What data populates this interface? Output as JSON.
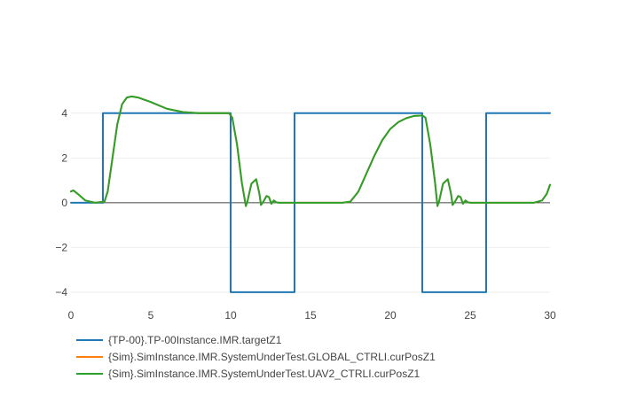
{
  "chart_data": {
    "type": "line",
    "title": "",
    "xlabel": "",
    "ylabel": "",
    "xlim": [
      0,
      30
    ],
    "ylim": [
      -4.4,
      5.1
    ],
    "x_ticks": [
      0,
      5,
      10,
      15,
      20,
      25,
      30
    ],
    "y_ticks": [
      -4,
      -2,
      0,
      2,
      4
    ],
    "grid": true,
    "zero_line": true,
    "legend_position": "bottom-left",
    "series": [
      {
        "name": "{TP-00}.TP-00Instance.IMR.targetZ1",
        "color": "#1f77b4",
        "shape": "step",
        "x": [
          0,
          2,
          2,
          10,
          10,
          14,
          14,
          22,
          22,
          26,
          26,
          30
        ],
        "y": [
          0,
          0,
          4,
          4,
          -4,
          -4,
          4,
          4,
          -4,
          -4,
          4,
          4
        ]
      },
      {
        "name": "{Sim}.SimInstance.IMR.SystemUnderTest.GLOBAL_CTRLI.curPosZ1",
        "color": "#ff7f0e",
        "shape": "linear",
        "x": [
          0,
          0.15,
          0.5,
          0.9,
          1.5,
          2.1,
          2.3,
          2.6,
          2.9,
          3.2,
          3.5,
          3.8,
          4.2,
          5,
          6,
          7,
          8,
          9,
          9.9,
          10.1,
          10.4,
          10.7,
          10.95,
          11.05,
          11.3,
          11.6,
          11.8,
          11.9,
          12.05,
          12.25,
          12.4,
          12.55,
          12.7,
          12.85,
          13.0,
          14,
          15,
          16,
          17,
          17.5,
          18,
          18.5,
          19,
          19.5,
          20,
          20.5,
          21,
          21.5,
          22,
          22.2,
          22.5,
          22.8,
          22.95,
          23.05,
          23.3,
          23.6,
          23.8,
          23.9,
          24.05,
          24.25,
          24.4,
          24.55,
          24.7,
          24.85,
          25.0,
          26,
          27,
          28,
          29,
          29.5,
          29.8,
          30
        ],
        "y": [
          0.5,
          0.55,
          0.35,
          0.1,
          0.0,
          0.05,
          0.5,
          2.0,
          3.5,
          4.4,
          4.7,
          4.75,
          4.7,
          4.5,
          4.2,
          4.05,
          4.0,
          4.0,
          4.0,
          3.8,
          2.6,
          0.9,
          -0.15,
          0.05,
          0.85,
          1.05,
          0.4,
          -0.1,
          0.05,
          0.3,
          0.25,
          -0.05,
          0.1,
          0.02,
          0.0,
          0.0,
          0.0,
          0.0,
          0.0,
          0.05,
          0.5,
          1.3,
          2.1,
          2.8,
          3.3,
          3.6,
          3.78,
          3.88,
          3.9,
          3.8,
          2.6,
          0.9,
          -0.15,
          0.05,
          0.85,
          1.05,
          0.4,
          -0.1,
          0.05,
          0.3,
          0.25,
          -0.05,
          0.1,
          0.02,
          0.0,
          0.0,
          0.0,
          0.0,
          0.0,
          0.1,
          0.4,
          0.8
        ]
      },
      {
        "name": "{Sim}.SimInstance.IMR.SystemUnderTest.UAV2_CTRLI.curPosZ1",
        "color": "#2ca02c",
        "shape": "linear",
        "x": [
          0,
          0.15,
          0.5,
          0.9,
          1.5,
          2.1,
          2.3,
          2.6,
          2.9,
          3.2,
          3.5,
          3.8,
          4.2,
          5,
          6,
          7,
          8,
          9,
          9.9,
          10.1,
          10.4,
          10.7,
          10.95,
          11.05,
          11.3,
          11.6,
          11.8,
          11.9,
          12.05,
          12.25,
          12.4,
          12.55,
          12.7,
          12.85,
          13.0,
          14,
          15,
          16,
          17,
          17.5,
          18,
          18.5,
          19,
          19.5,
          20,
          20.5,
          21,
          21.5,
          22,
          22.2,
          22.5,
          22.8,
          22.95,
          23.05,
          23.3,
          23.6,
          23.8,
          23.9,
          24.05,
          24.25,
          24.4,
          24.55,
          24.7,
          24.85,
          25.0,
          26,
          27,
          28,
          29,
          29.5,
          29.8,
          30
        ],
        "y": [
          0.5,
          0.55,
          0.35,
          0.1,
          0.0,
          0.05,
          0.5,
          2.0,
          3.5,
          4.4,
          4.7,
          4.75,
          4.7,
          4.5,
          4.2,
          4.05,
          4.0,
          4.0,
          4.0,
          3.8,
          2.6,
          0.9,
          -0.15,
          0.05,
          0.85,
          1.05,
          0.4,
          -0.1,
          0.05,
          0.3,
          0.25,
          -0.05,
          0.1,
          0.02,
          0.0,
          0.0,
          0.0,
          0.0,
          0.0,
          0.05,
          0.5,
          1.3,
          2.1,
          2.8,
          3.3,
          3.6,
          3.78,
          3.88,
          3.9,
          3.8,
          2.6,
          0.9,
          -0.15,
          0.05,
          0.85,
          1.05,
          0.4,
          -0.1,
          0.05,
          0.3,
          0.25,
          -0.05,
          0.1,
          0.02,
          0.0,
          0.0,
          0.0,
          0.0,
          0.0,
          0.1,
          0.4,
          0.8
        ]
      }
    ]
  }
}
